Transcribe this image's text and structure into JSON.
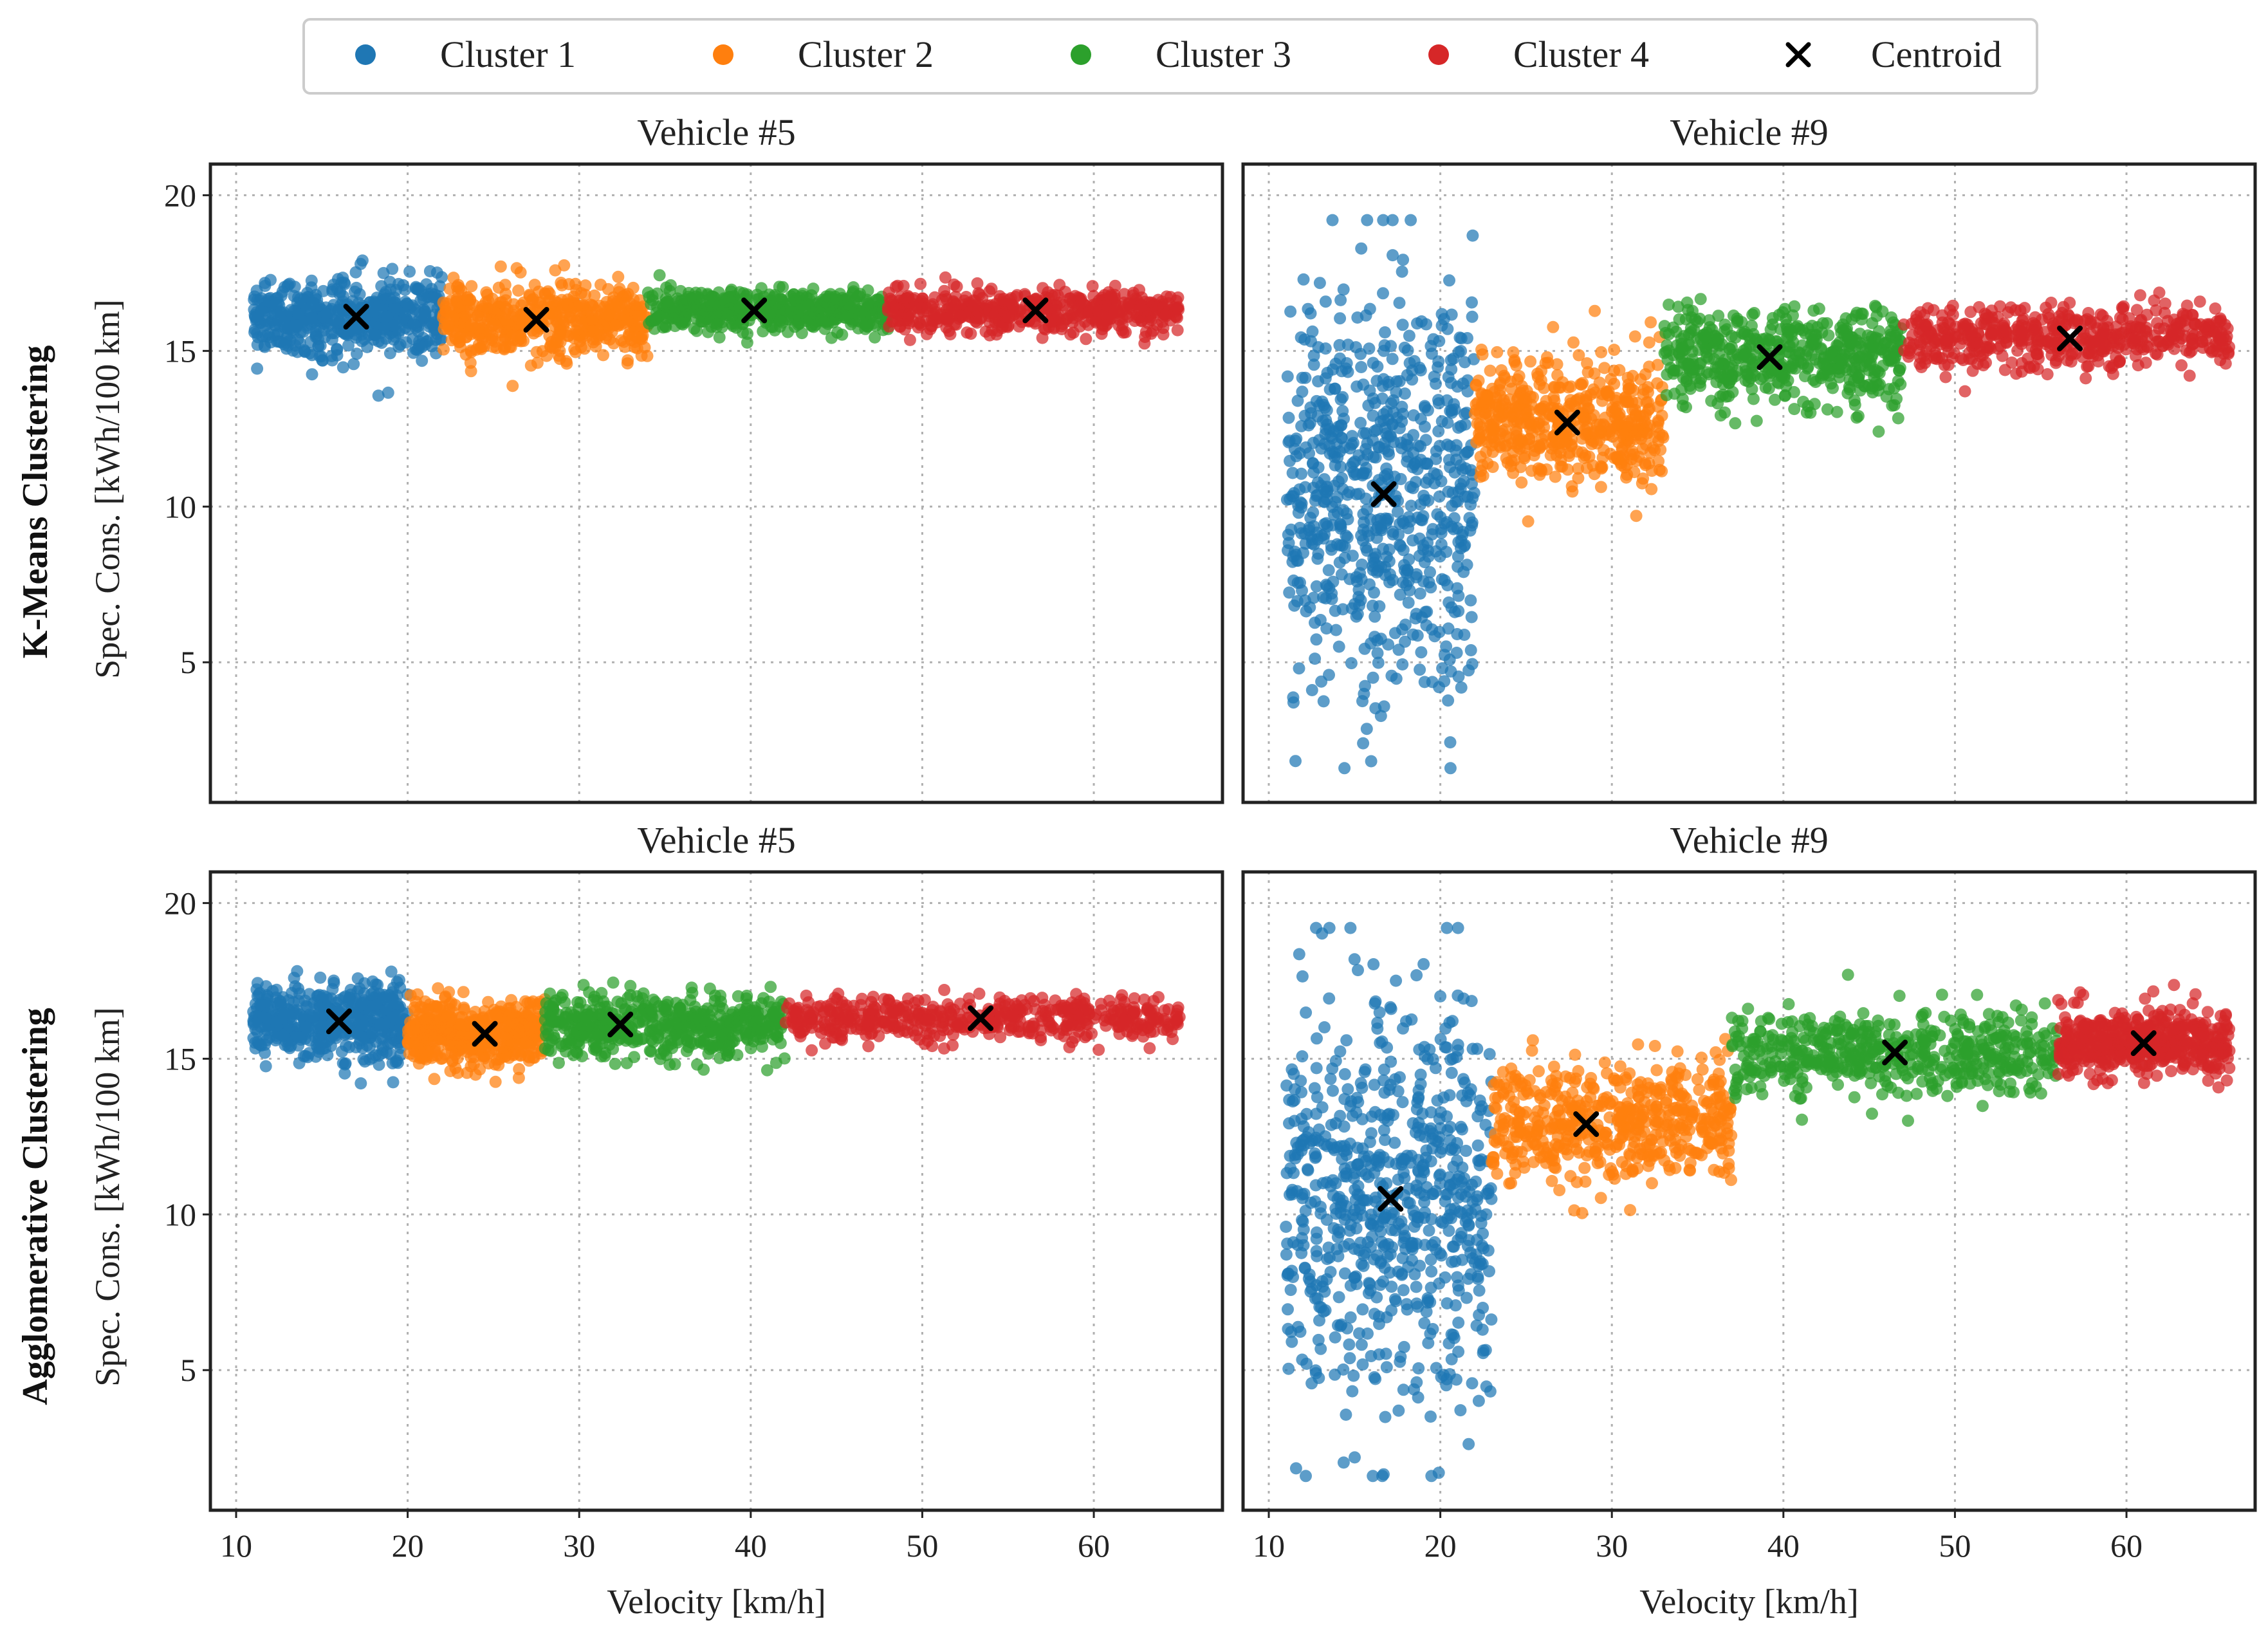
{
  "chart_data": [
    {
      "type": "scatter",
      "title": "Vehicle #5",
      "row_label": "K-Means Clustering",
      "xlabel": "",
      "ylabel": "Spec. Cons. [kWh/100 km]",
      "xlim": [
        8.5,
        67.5
      ],
      "ylim": [
        0.5,
        21
      ],
      "xticks": [
        "10",
        "20",
        "30",
        "40",
        "50",
        "60"
      ],
      "yticks": [
        "5",
        "10",
        "15",
        "20"
      ],
      "clusters": [
        {
          "name": "Cluster 1",
          "x_range": [
            11,
            22
          ],
          "y_center": 16.1,
          "y_spread": 1.1,
          "centroid": [
            17,
            16.1
          ]
        },
        {
          "name": "Cluster 2",
          "x_range": [
            22,
            34
          ],
          "y_center": 16.0,
          "y_spread": 1.0,
          "centroid": [
            27.5,
            16.0
          ]
        },
        {
          "name": "Cluster 3",
          "x_range": [
            34,
            48
          ],
          "y_center": 16.3,
          "y_spread": 0.6,
          "centroid": [
            40.2,
            16.3
          ]
        },
        {
          "name": "Cluster 4",
          "x_range": [
            48,
            65
          ],
          "y_center": 16.3,
          "y_spread": 0.6,
          "centroid": [
            56.6,
            16.3
          ]
        }
      ]
    },
    {
      "type": "scatter",
      "title": "Vehicle #9",
      "xlabel": "",
      "ylabel": "",
      "xlim": [
        8.5,
        67.5
      ],
      "ylim": [
        0.5,
        21
      ],
      "xticks": [
        "10",
        "20",
        "30",
        "40",
        "50",
        "60"
      ],
      "yticks": [
        "5",
        "10",
        "15",
        "20"
      ],
      "clusters": [
        {
          "name": "Cluster 1",
          "x_range": [
            11,
            22
          ],
          "y_center": 10.4,
          "y_spread": 3.6,
          "centroid": [
            16.7,
            10.4
          ]
        },
        {
          "name": "Cluster 2",
          "x_range": [
            22,
            33
          ],
          "y_center": 12.7,
          "y_spread": 1.8,
          "centroid": [
            27.4,
            12.7
          ]
        },
        {
          "name": "Cluster 3",
          "x_range": [
            33,
            47
          ],
          "y_center": 14.8,
          "y_spread": 1.4,
          "centroid": [
            39.2,
            14.8
          ]
        },
        {
          "name": "Cluster 4",
          "x_range": [
            47,
            66
          ],
          "y_center": 15.4,
          "y_spread": 0.9,
          "centroid": [
            56.7,
            15.4
          ]
        }
      ]
    },
    {
      "type": "scatter",
      "title": "Vehicle #5",
      "row_label": "Agglomerative Clustering",
      "xlabel": "Velocity [km/h]",
      "ylabel": "Spec. Cons. [kWh/100 km]",
      "xlim": [
        8.5,
        67.5
      ],
      "ylim": [
        0.5,
        21
      ],
      "xticks": [
        "10",
        "20",
        "30",
        "40",
        "50",
        "60"
      ],
      "yticks": [
        "5",
        "10",
        "15",
        "20"
      ],
      "clusters": [
        {
          "name": "Cluster 1",
          "x_range": [
            11,
            20
          ],
          "y_center": 16.2,
          "y_spread": 1.1,
          "centroid": [
            16,
            16.2
          ]
        },
        {
          "name": "Cluster 2",
          "x_range": [
            20,
            28
          ],
          "y_center": 15.8,
          "y_spread": 0.9,
          "centroid": [
            24.5,
            15.8
          ]
        },
        {
          "name": "Cluster 3",
          "x_range": [
            28,
            42
          ],
          "y_center": 16.1,
          "y_spread": 0.9,
          "centroid": [
            32.4,
            16.1
          ]
        },
        {
          "name": "Cluster 4",
          "x_range": [
            42,
            65
          ],
          "y_center": 16.3,
          "y_spread": 0.6,
          "centroid": [
            53.4,
            16.3
          ]
        }
      ]
    },
    {
      "type": "scatter",
      "title": "Vehicle #9",
      "xlabel": "Velocity [km/h]",
      "ylabel": "",
      "xlim": [
        8.5,
        67.5
      ],
      "ylim": [
        0.5,
        21
      ],
      "xticks": [
        "10",
        "20",
        "30",
        "40",
        "50",
        "60"
      ],
      "yticks": [
        "5",
        "10",
        "15",
        "20"
      ],
      "clusters": [
        {
          "name": "Cluster 1",
          "x_range": [
            11,
            23
          ],
          "y_center": 10.5,
          "y_spread": 3.6,
          "centroid": [
            17.1,
            10.5
          ]
        },
        {
          "name": "Cluster 2",
          "x_range": [
            23,
            37
          ],
          "y_center": 12.9,
          "y_spread": 1.8,
          "centroid": [
            28.5,
            12.9
          ]
        },
        {
          "name": "Cluster 3",
          "x_range": [
            37,
            56
          ],
          "y_center": 15.2,
          "y_spread": 1.2,
          "centroid": [
            46.5,
            15.2
          ]
        },
        {
          "name": "Cluster 4",
          "x_range": [
            56,
            66
          ],
          "y_center": 15.5,
          "y_spread": 0.9,
          "centroid": [
            61.0,
            15.5
          ]
        }
      ]
    }
  ],
  "legend": {
    "items": [
      {
        "label": "Cluster 1",
        "color": "#1f77b4",
        "marker": "dot"
      },
      {
        "label": "Cluster 2",
        "color": "#ff7f0e",
        "marker": "dot"
      },
      {
        "label": "Cluster 3",
        "color": "#2ca02c",
        "marker": "dot"
      },
      {
        "label": "Cluster 4",
        "color": "#d62728",
        "marker": "dot"
      },
      {
        "label": "Centroid",
        "color": "#000000",
        "marker": "x"
      }
    ]
  }
}
